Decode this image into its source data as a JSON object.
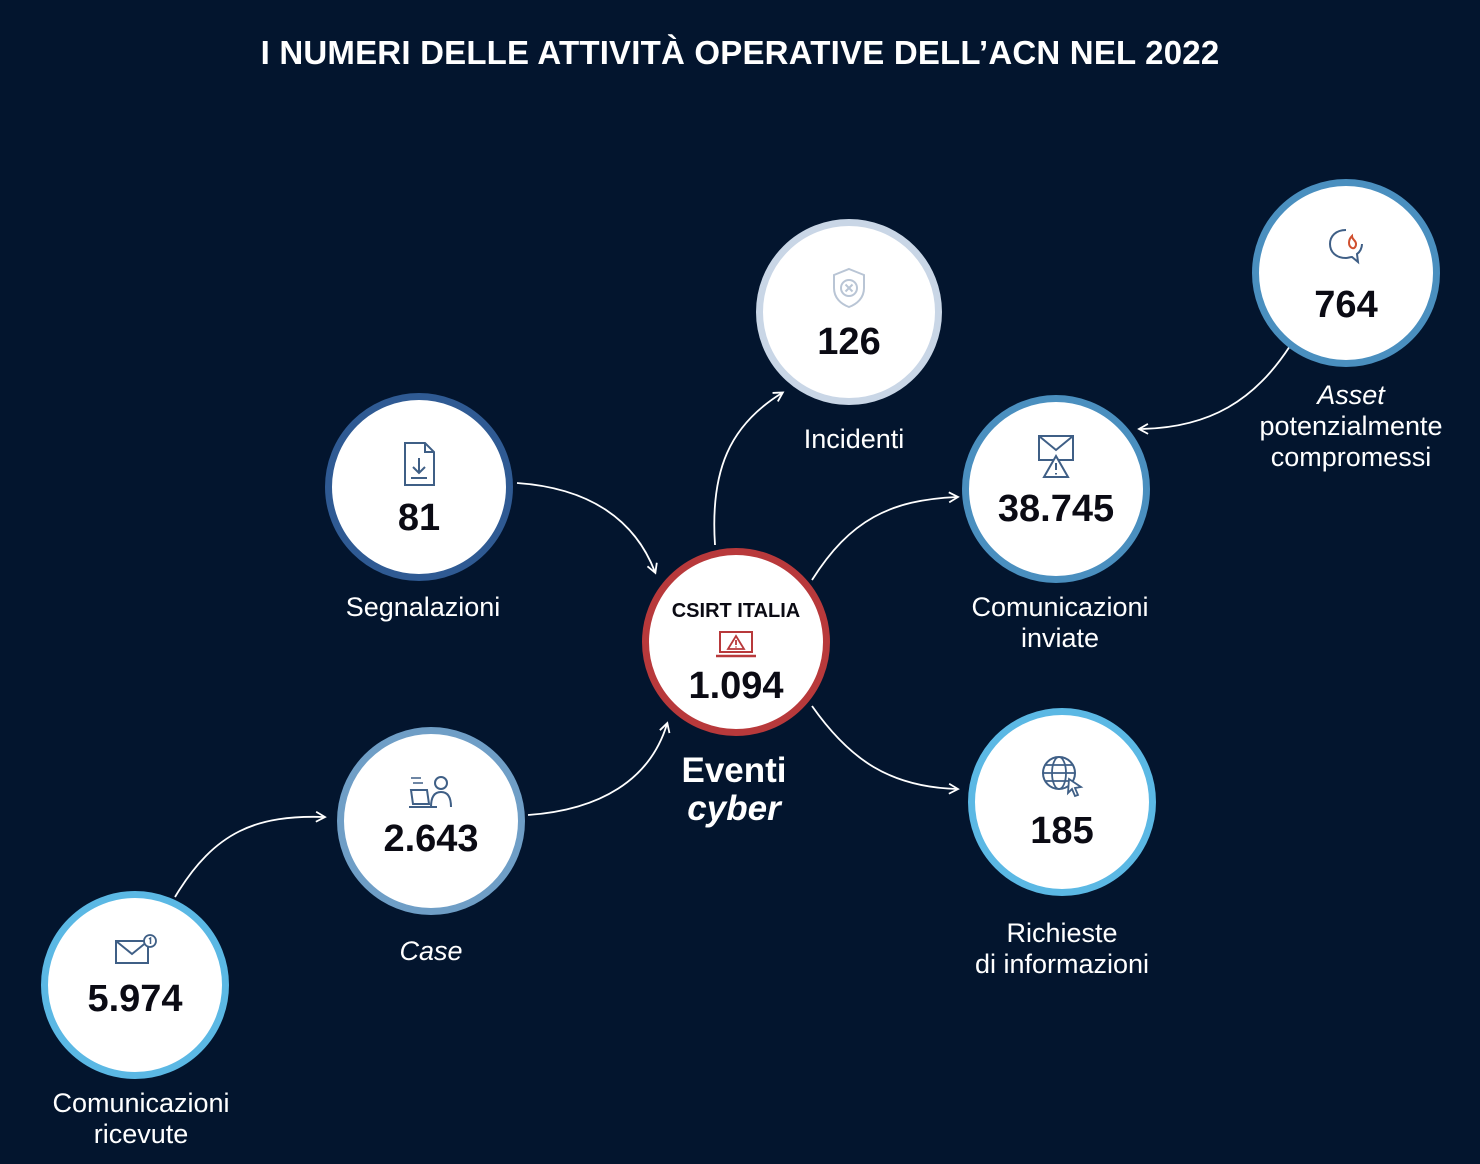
{
  "title": "I NUMERI DELLE ATTIVITÀ OPERATIVE DELL’ACN NEL 2022",
  "colors": {
    "background": "#03152e",
    "ring_dark_blue": "#2f5a93",
    "ring_steel_blue": "#6f9ec6",
    "ring_light_blue": "#5bb8e4",
    "ring_pale": "#c9d6e6",
    "ring_mid_blue": "#4a8fbf",
    "ring_red": "#b8393b"
  },
  "nodes": {
    "segnalazioni": {
      "value": "81",
      "label": "Segnalazioni",
      "icon": "document-download-icon"
    },
    "incidenti": {
      "value": "126",
      "label": "Incidenti",
      "icon": "shield-x-icon"
    },
    "asset": {
      "value": "764",
      "label_italic": "Asset",
      "label_line2": "potenzialmente",
      "label_line3": "compromessi",
      "icon": "chat-fire-icon"
    },
    "comunicazioni_inviate": {
      "value": "38.745",
      "label_line1": "Comunicazioni",
      "label_line2": "inviate",
      "icon": "mail-warning-icon"
    },
    "csirt": {
      "badge": "CSIRT ITALIA",
      "value": "1.094",
      "label_line1": "Eventi",
      "label_line2_italic": "cyber",
      "icon": "laptop-warning-icon"
    },
    "case": {
      "value": "2.643",
      "label_italic": "Case",
      "icon": "person-laptop-icon"
    },
    "richieste": {
      "value": "185",
      "label_line1": "Richieste",
      "label_line2": "di informazioni",
      "icon": "globe-cursor-icon"
    },
    "comunicazioni_ricevute": {
      "value": "5.974",
      "label_line1": "Comunicazioni",
      "label_line2": "ricevute",
      "icon": "mail-notification-icon"
    }
  }
}
